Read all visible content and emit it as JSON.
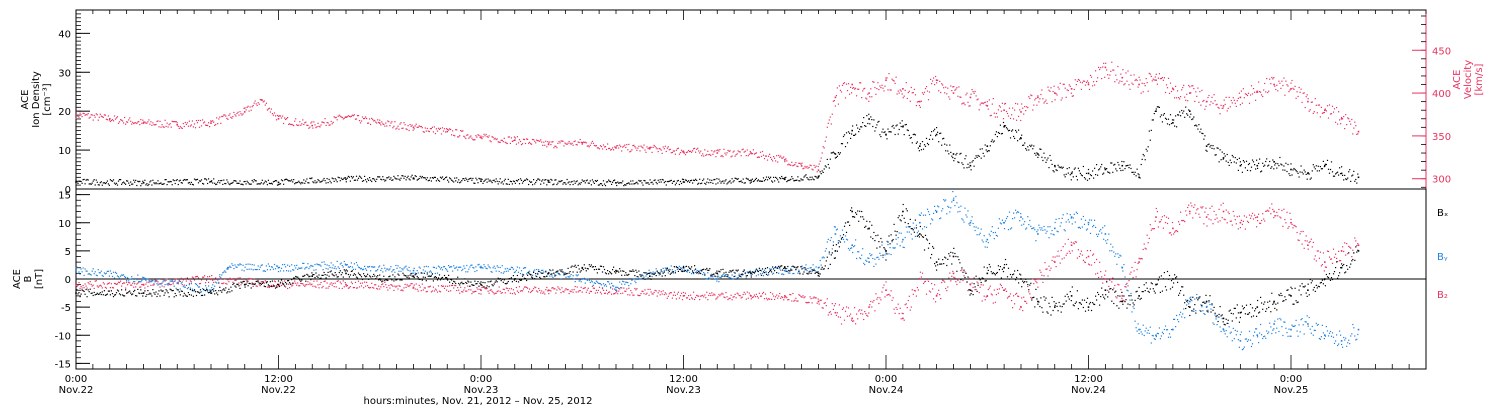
{
  "colors": {
    "black": "#000000",
    "pink": "#e8335f",
    "blue": "#1f82e0"
  },
  "chart_data": [
    {
      "type": "scatter",
      "panel": "top",
      "ylabel_lines": [
        "ACE",
        "Ion Density",
        "[cm⁻³]"
      ],
      "ylabel2_lines": [
        "ACE",
        "Velocity",
        "[km/s]"
      ],
      "left_axis": {
        "ylim": [
          0,
          46
        ],
        "ticks": [
          0,
          10,
          20,
          30,
          40
        ]
      },
      "right_axis": {
        "ylim": [
          288,
          497
        ],
        "ticks": [
          300,
          350,
          400,
          450
        ]
      },
      "series": [
        {
          "axis": "left",
          "color": "black",
          "points": [
            [
              0,
              1.8
            ],
            [
              4,
              1.6
            ],
            [
              8,
              1.9
            ],
            [
              12,
              1.7
            ],
            [
              16,
              2.5
            ],
            [
              20,
              2.8
            ],
            [
              24,
              2.0
            ],
            [
              28,
              1.8
            ],
            [
              32,
              1.6
            ],
            [
              36,
              1.8
            ],
            [
              40,
              2.2
            ],
            [
              42,
              2.5
            ],
            [
              44,
              3.2
            ],
            [
              45,
              9
            ],
            [
              46,
              15
            ],
            [
              47,
              18
            ],
            [
              48,
              14
            ],
            [
              49,
              16
            ],
            [
              50,
              11
            ],
            [
              51,
              14
            ],
            [
              52,
              9
            ],
            [
              53,
              6
            ],
            [
              54,
              11
            ],
            [
              55,
              16
            ],
            [
              56,
              13
            ],
            [
              57,
              9
            ],
            [
              58,
              6
            ],
            [
              59,
              4
            ],
            [
              60,
              4
            ],
            [
              61,
              5
            ],
            [
              62,
              6
            ],
            [
              63,
              3
            ],
            [
              64,
              20
            ],
            [
              65,
              17
            ],
            [
              66,
              20
            ],
            [
              67,
              11
            ],
            [
              68,
              8
            ],
            [
              69,
              6
            ],
            [
              70,
              6
            ],
            [
              71,
              7
            ],
            [
              72,
              5
            ],
            [
              73,
              4
            ],
            [
              74,
              6
            ],
            [
              75,
              4
            ],
            [
              76,
              3
            ]
          ]
        },
        {
          "axis": "right",
          "color": "pink",
          "points": [
            [
              0,
              375
            ],
            [
              2,
              370
            ],
            [
              4,
              365
            ],
            [
              6,
              363
            ],
            [
              8,
              365
            ],
            [
              10,
              378
            ],
            [
              11,
              392
            ],
            [
              12,
              370
            ],
            [
              14,
              362
            ],
            [
              16,
              372
            ],
            [
              18,
              365
            ],
            [
              20,
              360
            ],
            [
              22,
              355
            ],
            [
              24,
              348
            ],
            [
              26,
              345
            ],
            [
              28,
              340
            ],
            [
              30,
              342
            ],
            [
              32,
              336
            ],
            [
              34,
              335
            ],
            [
              36,
              332
            ],
            [
              38,
              330
            ],
            [
              40,
              330
            ],
            [
              42,
              322
            ],
            [
              43,
              315
            ],
            [
              44,
              310
            ],
            [
              45,
              395
            ],
            [
              46,
              410
            ],
            [
              47,
              400
            ],
            [
              48,
              415
            ],
            [
              49,
              405
            ],
            [
              50,
              390
            ],
            [
              51,
              415
            ],
            [
              52,
              400
            ],
            [
              53,
              395
            ],
            [
              54,
              385
            ],
            [
              55,
              380
            ],
            [
              56,
              378
            ],
            [
              57,
              395
            ],
            [
              58,
              400
            ],
            [
              59,
              405
            ],
            [
              60,
              410
            ],
            [
              61,
              430
            ],
            [
              62,
              418
            ],
            [
              63,
              410
            ],
            [
              64,
              415
            ],
            [
              65,
              405
            ],
            [
              66,
              400
            ],
            [
              67,
              390
            ],
            [
              68,
              385
            ],
            [
              69,
              395
            ],
            [
              70,
              402
            ],
            [
              71,
              410
            ],
            [
              72,
              405
            ],
            [
              73,
              390
            ],
            [
              74,
              380
            ],
            [
              75,
              370
            ],
            [
              76,
              355
            ]
          ]
        }
      ]
    },
    {
      "type": "scatter",
      "panel": "bottom",
      "ylabel_lines": [
        "ACE",
        "B",
        "[nT]"
      ],
      "ylim": [
        -16,
        16
      ],
      "ticks": [
        -15,
        -10,
        -5,
        0,
        5,
        10,
        15
      ],
      "legend": [
        "Bₓ",
        "Bᵧ",
        "B₂"
      ],
      "legend_placement": "right",
      "series": [
        {
          "name": "Bₓ",
          "color": "black",
          "points": [
            [
              0,
              -2.5
            ],
            [
              4,
              -2.5
            ],
            [
              8,
              -2.5
            ],
            [
              10,
              -1
            ],
            [
              12,
              -1
            ],
            [
              14,
              0.5
            ],
            [
              16,
              1
            ],
            [
              18,
              0
            ],
            [
              20,
              0.5
            ],
            [
              22,
              0
            ],
            [
              24,
              -1
            ],
            [
              26,
              0
            ],
            [
              28,
              1
            ],
            [
              30,
              2
            ],
            [
              32,
              1.5
            ],
            [
              34,
              0.5
            ],
            [
              36,
              2
            ],
            [
              38,
              1
            ],
            [
              40,
              1
            ],
            [
              42,
              2
            ],
            [
              44,
              1
            ],
            [
              45,
              5
            ],
            [
              46,
              12
            ],
            [
              47,
              9
            ],
            [
              48,
              5
            ],
            [
              49,
              12
            ],
            [
              50,
              8
            ],
            [
              51,
              3
            ],
            [
              52,
              4
            ],
            [
              53,
              -2
            ],
            [
              54,
              1
            ],
            [
              55,
              2
            ],
            [
              56,
              0
            ],
            [
              57,
              -4
            ],
            [
              58,
              -5
            ],
            [
              59,
              -3
            ],
            [
              60,
              -5
            ],
            [
              61,
              -2
            ],
            [
              62,
              -4
            ],
            [
              63,
              -3
            ],
            [
              64,
              -1
            ],
            [
              65,
              0
            ],
            [
              66,
              -5
            ],
            [
              67,
              -4
            ],
            [
              68,
              -7
            ],
            [
              69,
              -6
            ],
            [
              70,
              -5
            ],
            [
              71,
              -4
            ],
            [
              72,
              -3
            ],
            [
              73,
              -2
            ],
            [
              74,
              0
            ],
            [
              75,
              2
            ],
            [
              76,
              5
            ]
          ]
        },
        {
          "name": "Bᵧ",
          "color": "blue",
          "points": [
            [
              0,
              1.5
            ],
            [
              4,
              0
            ],
            [
              8,
              -2
            ],
            [
              9,
              2
            ],
            [
              12,
              2
            ],
            [
              16,
              2.5
            ],
            [
              20,
              1.5
            ],
            [
              24,
              2
            ],
            [
              28,
              1
            ],
            [
              30,
              0
            ],
            [
              32,
              -1.5
            ],
            [
              34,
              1
            ],
            [
              36,
              2
            ],
            [
              38,
              0
            ],
            [
              40,
              1
            ],
            [
              42,
              1.5
            ],
            [
              44,
              2
            ],
            [
              45,
              8
            ],
            [
              46,
              6
            ],
            [
              47,
              3
            ],
            [
              48,
              5
            ],
            [
              49,
              7
            ],
            [
              50,
              10
            ],
            [
              51,
              12
            ],
            [
              52,
              14
            ],
            [
              53,
              10
            ],
            [
              54,
              7
            ],
            [
              55,
              10
            ],
            [
              56,
              11
            ],
            [
              57,
              8
            ],
            [
              58,
              9
            ],
            [
              59,
              11
            ],
            [
              60,
              10
            ],
            [
              61,
              8
            ],
            [
              62,
              2
            ],
            [
              63,
              -9
            ],
            [
              64,
              -10
            ],
            [
              65,
              -9
            ],
            [
              66,
              -4
            ],
            [
              67,
              -5
            ],
            [
              68,
              -9
            ],
            [
              69,
              -11
            ],
            [
              70,
              -10
            ],
            [
              71,
              -8
            ],
            [
              72,
              -9
            ],
            [
              73,
              -8
            ],
            [
              74,
              -10
            ],
            [
              75,
              -11
            ],
            [
              76,
              -9
            ]
          ]
        },
        {
          "name": "B₂",
          "color": "pink",
          "points": [
            [
              0,
              -1
            ],
            [
              4,
              -1
            ],
            [
              8,
              0
            ],
            [
              12,
              -1
            ],
            [
              16,
              -1
            ],
            [
              20,
              -1.5
            ],
            [
              24,
              -2
            ],
            [
              28,
              -2
            ],
            [
              32,
              -2
            ],
            [
              36,
              -3
            ],
            [
              40,
              -3
            ],
            [
              42,
              -3
            ],
            [
              44,
              -4
            ],
            [
              45,
              -6
            ],
            [
              46,
              -7
            ],
            [
              47,
              -5
            ],
            [
              48,
              -2
            ],
            [
              49,
              -7
            ],
            [
              50,
              0
            ],
            [
              51,
              -3
            ],
            [
              52,
              1
            ],
            [
              53,
              -1
            ],
            [
              54,
              -3
            ],
            [
              55,
              -2
            ],
            [
              56,
              -5
            ],
            [
              57,
              0
            ],
            [
              58,
              3
            ],
            [
              59,
              6
            ],
            [
              60,
              4
            ],
            [
              61,
              0
            ],
            [
              62,
              -3
            ],
            [
              63,
              3
            ],
            [
              64,
              11
            ],
            [
              65,
              9
            ],
            [
              66,
              12
            ],
            [
              67,
              11
            ],
            [
              68,
              12
            ],
            [
              69,
              10
            ],
            [
              70,
              11
            ],
            [
              71,
              12
            ],
            [
              72,
              10
            ],
            [
              73,
              6
            ],
            [
              74,
              3
            ],
            [
              75,
              5
            ],
            [
              76,
              6
            ]
          ]
        }
      ]
    }
  ],
  "x_axis": {
    "xlim": [
      0,
      80
    ],
    "ticks": [
      {
        "x": 0,
        "line1": "0:00",
        "line2": "Nov.22"
      },
      {
        "x": 12,
        "line1": "12:00",
        "line2": "Nov.22"
      },
      {
        "x": 24,
        "line1": "0:00",
        "line2": "Nov.23"
      },
      {
        "x": 36,
        "line1": "12:00",
        "line2": "Nov.23"
      },
      {
        "x": 48,
        "line1": "0:00",
        "line2": "Nov.24"
      },
      {
        "x": 60,
        "line1": "12:00",
        "line2": "Nov.24"
      },
      {
        "x": 72,
        "line1": "0:00",
        "line2": "Nov.25"
      }
    ],
    "minor_step_hours": 1,
    "label": "hours:minutes, Nov. 21, 2012 – Nov. 25, 2012"
  }
}
